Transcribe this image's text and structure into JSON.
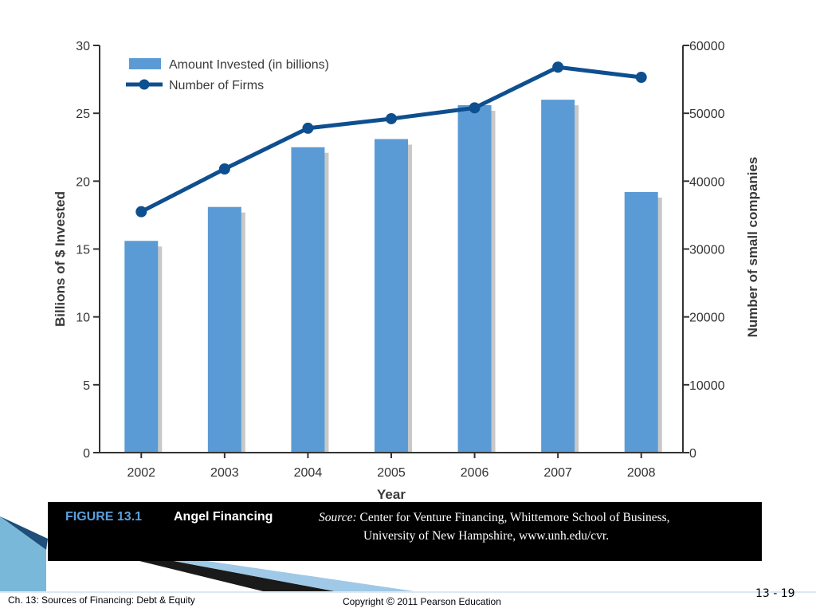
{
  "chart_data": {
    "type": "bar",
    "categories": [
      "2002",
      "2003",
      "2004",
      "2005",
      "2006",
      "2007",
      "2008"
    ],
    "series": [
      {
        "name": "Amount Invested (in billions)",
        "kind": "bar",
        "axis": "left",
        "color": "#5b9bd5",
        "values": [
          15.6,
          18.1,
          22.5,
          23.1,
          25.6,
          26.0,
          19.2
        ]
      },
      {
        "name": "Number of Firms",
        "kind": "line",
        "axis": "right",
        "color": "#0e4f8f",
        "values": [
          35500,
          41800,
          47800,
          49200,
          50800,
          56800,
          55300
        ]
      }
    ],
    "xlabel": "Year",
    "ylabel": "Billions of $ Invested",
    "y2label": "Number of small companies",
    "ylim": [
      0,
      30
    ],
    "y2lim": [
      0,
      60000
    ],
    "yticks": [
      "0",
      "5",
      "10",
      "15",
      "20",
      "25",
      "30"
    ],
    "y2ticks": [
      "0",
      "10000",
      "20000",
      "30000",
      "40000",
      "50000",
      "60000"
    ],
    "grid": false,
    "legend": "top-left"
  },
  "caption": {
    "figure_number": "FIGURE 13.1",
    "figure_title": "Angel Financing",
    "source_label": "Source:",
    "source_line1": "Center for Venture Financing, Whittemore School of Business,",
    "source_line2": "University of New Hampshire, www.unh.edu/cvr."
  },
  "footer": {
    "chapter": "Ch. 13: Sources of Financing: Debt & Equity",
    "copyright_symbol": "©",
    "copyright_prefix": "Copyright ",
    "copyright_rest": " 2011 Pearson Education",
    "slide_number": "13 - 19"
  },
  "colors": {
    "bar": "#5b9bd5",
    "bar_shadow": "#c8c8c8",
    "line": "#0e4f8f",
    "caption_bg": "#000000",
    "figure_number": "#5aa0dc"
  }
}
